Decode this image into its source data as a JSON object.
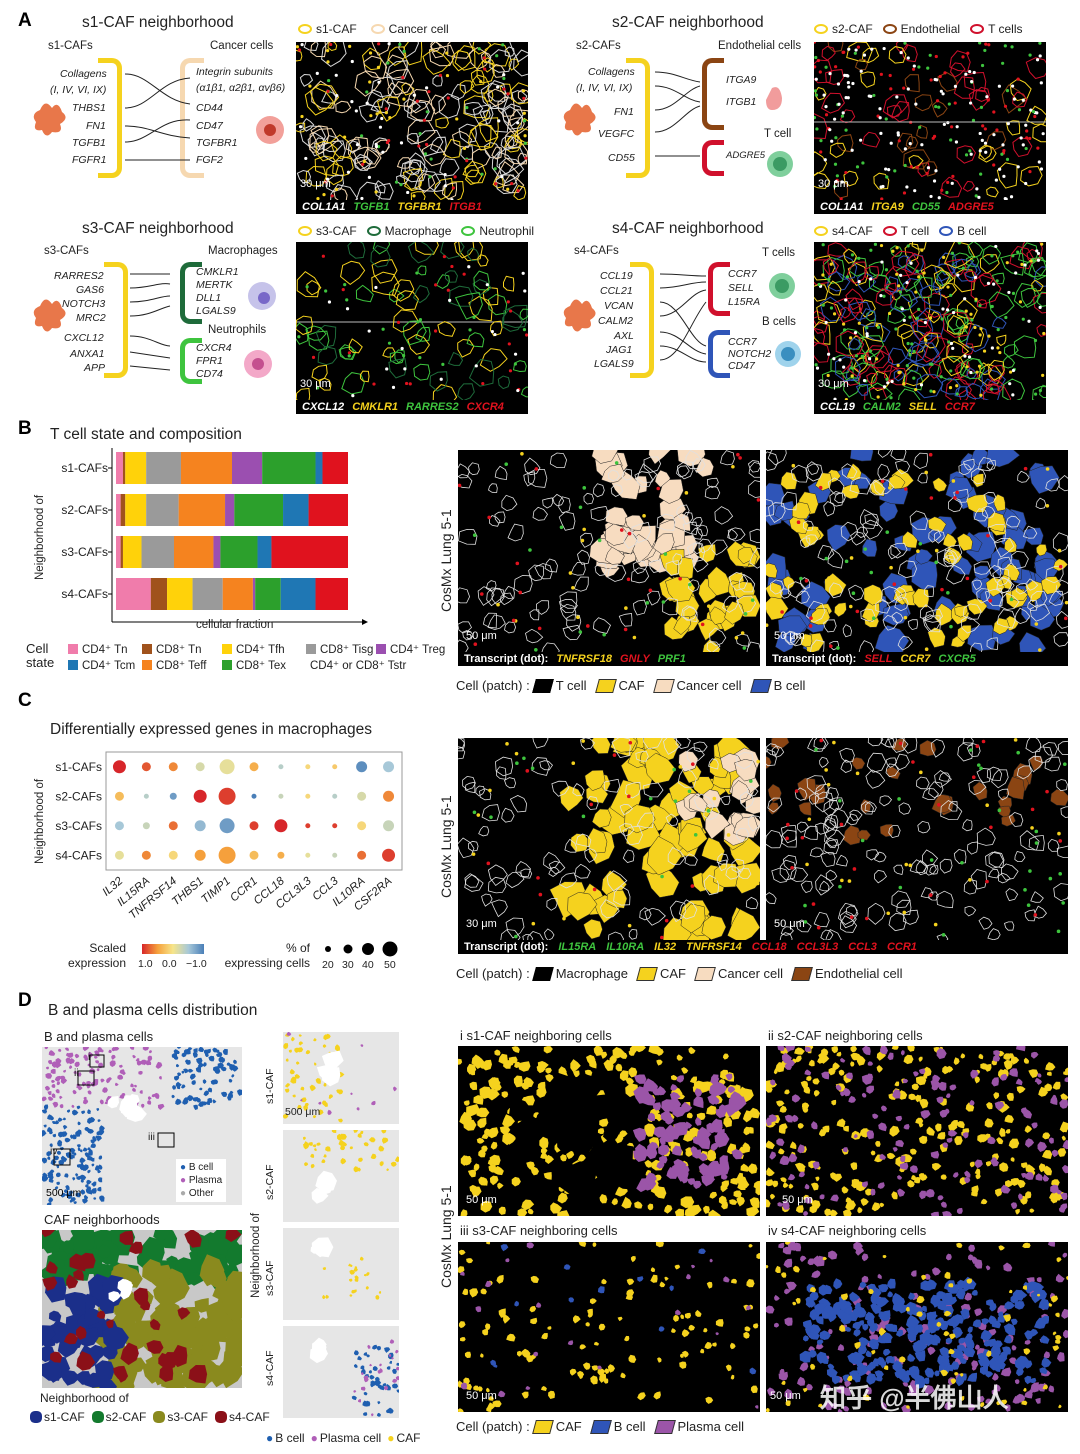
{
  "panels": {
    "a": "A",
    "b": "B",
    "c": "C",
    "d": "D"
  },
  "A": {
    "s1": {
      "title": "s1-CAF neighborhood",
      "left_head": "s1-CAFs",
      "right_head": "Cancer cells",
      "left_genes": [
        "Collagens",
        "(I, IV, VI, IX)",
        "THBS1",
        "FN1",
        "TGFB1",
        "FGFR1"
      ],
      "right_genes": [
        "Integrin subunits",
        "(α1β1, α2β1, αvβ6)",
        "CD44",
        "CD47",
        "TGFBR1",
        "FGF2"
      ],
      "legend": [
        "s1-CAF",
        "Cancer cell"
      ],
      "scale": "30 μm",
      "caption": [
        "COL1A1",
        "TGFB1",
        "TGFBR1",
        "ITGB1"
      ]
    },
    "s2": {
      "title": "s2-CAF neighborhood",
      "left_head": "s2-CAFs",
      "right_head": "Endothelial cells",
      "right_head2": "T cell",
      "left_genes": [
        "Collagens",
        "(I, IV, VI, IX)",
        "FN1",
        "VEGFC",
        "CD55"
      ],
      "right_genes": [
        "ITGA9",
        "ITGB1",
        "ADGRE5"
      ],
      "legend": [
        "s2-CAF",
        "Endothelial",
        "T cells"
      ],
      "scale": "30 μm",
      "caption": [
        "COL1A1",
        "ITGA9",
        "CD55",
        "ADGRE5"
      ]
    },
    "s3": {
      "title": "s3-CAF neighborhood",
      "left_head": "s3-CAFs",
      "right_head": "Macrophages",
      "right_head2": "Neutrophils",
      "left_genes": [
        "RARRES2",
        "GAS6",
        "NOTCH3",
        "MRC2",
        "CXCL12",
        "ANXA1",
        "APP"
      ],
      "right_genes": [
        "CMKLR1",
        "MERTK",
        "DLL1",
        "LGALS9",
        "CXCR4",
        "FPR1",
        "CD74"
      ],
      "legend": [
        "s3-CAF",
        "Macrophage",
        "Neutrophil"
      ],
      "scale": "30 μm",
      "caption": [
        "CXCL12",
        "CMKLR1",
        "RARRES2",
        "CXCR4"
      ]
    },
    "s4": {
      "title": "s4-CAF neighborhood",
      "left_head": "s4-CAFs",
      "right_head": "T cells",
      "right_head2": "B cells",
      "left_genes": [
        "CCL19",
        "CCL21",
        "VCAN",
        "CALM2",
        "AXL",
        "JAG1",
        "LGALS9"
      ],
      "right_genes": [
        "CCR7",
        "SELL",
        "L15RA",
        "CCR7",
        "NOTCH2",
        "CD47"
      ],
      "legend": [
        "s4-CAF",
        "T cell",
        "B cell"
      ],
      "scale": "30 μm",
      "caption": [
        "CCL19",
        "CALM2",
        "SELL",
        "CCR7"
      ]
    }
  },
  "B": {
    "title": "T cell state and composition",
    "ylabel": "Neighborhood of",
    "xlabel": "cellular fraction",
    "cell_state_label": [
      "Cell",
      "state"
    ],
    "legend": [
      {
        "name": "CD4⁺ Tn",
        "color": "#f07cab"
      },
      {
        "name": "CD8⁺ Tn",
        "color": "#a0521c"
      },
      {
        "name": "CD4⁺ Tfh",
        "color": "#ffd20a"
      },
      {
        "name": "CD8⁺ Tisg",
        "color": "#9a9a9a"
      },
      {
        "name": "CD4⁺ Treg",
        "color": "#9b4fb0"
      },
      {
        "name": "CD4⁺ Tcm",
        "color": "#1f77b4"
      },
      {
        "name": "CD8⁺ Teff",
        "color": "#f5831f"
      },
      {
        "name": "CD8⁺ Tex",
        "color": "#2ca02c"
      },
      {
        "name": "CD4⁺ or CD8⁺ Tstr",
        "color": "#e0121e"
      }
    ],
    "side_label": "CosMx Lung 5-1",
    "img1_caption": [
      "Transcript (dot):",
      "TNFRSF18",
      "GNLY",
      "PRF1"
    ],
    "img2_caption": [
      "Transcript (dot):",
      "SELL",
      "CCR7",
      "CXCR5"
    ],
    "scale": "50 μm",
    "patch_label": "Cell (patch) :",
    "patch_legend": [
      "T cell",
      "CAF",
      "Cancer cell",
      "B cell"
    ]
  },
  "chart_data": [
    {
      "type": "bar",
      "orientation": "horizontal-stacked",
      "title": "T cell state and composition",
      "xlabel": "cellular fraction",
      "ylabel": "Neighborhood of",
      "categories": [
        "s1-CAFs",
        "s2-CAFs",
        "s3-CAFs",
        "s4-CAFs"
      ],
      "xlim": [
        0,
        1
      ],
      "series": [
        {
          "name": "CD4⁺ Tn",
          "values": [
            0.03,
            0.02,
            0.02,
            0.15
          ]
        },
        {
          "name": "CD8⁺ Tn",
          "values": [
            0.01,
            0.02,
            0.01,
            0.07
          ]
        },
        {
          "name": "CD4⁺ Tfh",
          "values": [
            0.09,
            0.09,
            0.08,
            0.11
          ]
        },
        {
          "name": "CD8⁺ Tisg",
          "values": [
            0.15,
            0.14,
            0.14,
            0.13
          ]
        },
        {
          "name": "CD8⁺ Teff",
          "values": [
            0.22,
            0.2,
            0.17,
            0.13
          ]
        },
        {
          "name": "CD4⁺ Treg",
          "values": [
            0.13,
            0.04,
            0.03,
            0.01
          ]
        },
        {
          "name": "CD8⁺ Tex",
          "values": [
            0.23,
            0.21,
            0.16,
            0.11
          ]
        },
        {
          "name": "CD4⁺ Tcm",
          "values": [
            0.03,
            0.11,
            0.06,
            0.15
          ]
        },
        {
          "name": "CD4⁺ or CD8⁺ Tstr",
          "values": [
            0.11,
            0.17,
            0.33,
            0.14
          ]
        }
      ]
    },
    {
      "type": "scatter",
      "subtype": "dot-plot",
      "title": "Differentially expressed genes in macrophages",
      "ylabel": "Neighborhood of",
      "genes": [
        "IL32",
        "IL15RA",
        "TNFRSF14",
        "THBS1",
        "TIMP1",
        "CCR1",
        "CCL18",
        "CCL3L3",
        "CCL3",
        "IL10RA",
        "CSF2RA"
      ],
      "rows": [
        "s1-CAFs",
        "s2-CAFs",
        "s3-CAFs",
        "s4-CAFs"
      ],
      "expression_range": [
        -1.0,
        1.0
      ],
      "pct_range": [
        20,
        50
      ],
      "scaled_expression": [
        [
          1.0,
          0.8,
          0.6,
          -0.2,
          -0.1,
          0.4,
          -0.4,
          0.1,
          0.2,
          -0.9,
          -0.5
        ],
        [
          0.3,
          -0.4,
          -0.8,
          1.0,
          0.9,
          -1.0,
          -0.3,
          0.1,
          -0.4,
          -0.2,
          0.6
        ],
        [
          -0.5,
          -0.3,
          0.7,
          -0.6,
          -0.8,
          0.9,
          1.0,
          0.9,
          0.9,
          0.1,
          -0.3
        ],
        [
          -0.1,
          0.6,
          0.1,
          0.5,
          0.5,
          0.3,
          0.4,
          -0.1,
          -0.3,
          0.7,
          0.9
        ]
      ],
      "pct_expressing": [
        [
          40,
          30,
          30,
          30,
          45,
          30,
          20,
          20,
          20,
          35,
          35
        ],
        [
          30,
          20,
          25,
          40,
          50,
          20,
          20,
          20,
          20,
          30,
          35
        ],
        [
          30,
          25,
          30,
          35,
          45,
          30,
          40,
          20,
          20,
          30,
          35
        ],
        [
          30,
          30,
          30,
          35,
          50,
          30,
          25,
          20,
          20,
          30,
          40
        ]
      ]
    }
  ],
  "C": {
    "title": "Differentially expressed genes in macrophages",
    "ylabel": "Neighborhood of",
    "scaled_label": [
      "Scaled",
      "expression"
    ],
    "scale_ticks": [
      "1.0",
      "0.0",
      "−1.0"
    ],
    "pct_label": [
      "% of",
      "expressing cells"
    ],
    "pct_ticks": [
      "20",
      "30",
      "40",
      "50"
    ],
    "side_label": "CosMx Lung 5-1",
    "caption": [
      "Transcript (dot):",
      "IL15RA",
      "IL10RA",
      "IL32",
      "TNFRSF14",
      "CCL18",
      "CCL3L3",
      "CCL3",
      "CCR1"
    ],
    "scale": "30 μm",
    "scale2": "50 μm",
    "patch_label": "Cell (patch) :",
    "patch_legend": [
      "Macrophage",
      "CAF",
      "Cancer cell",
      "Endothelial cell"
    ]
  },
  "D": {
    "title": "B and plasma cells distribution",
    "sub1": "B and plasma cells",
    "roman": [
      "i",
      "ii",
      "iii",
      "iv"
    ],
    "map_legend": [
      "B cell",
      "Plasma",
      "Other"
    ],
    "scale1": "500 μm",
    "sub2": "CAF neighborhoods",
    "nb_label": "Neighborhood of",
    "nb_legend": [
      "s1-CAF",
      "s2-CAF",
      "s3-CAF",
      "s4-CAF"
    ],
    "strip_ylabel": "Neighborhood of",
    "strip_labels": [
      "s1-CAF",
      "s2-CAF",
      "s3-CAF",
      "s4-CAF"
    ],
    "strip_scale": "500 μm",
    "strip_legend": [
      "B cell",
      "Plasma cell",
      "CAF"
    ],
    "side_label": "CosMx Lung 5-1",
    "quad_titles": [
      "i  s1-CAF neighboring cells",
      "ii  s2-CAF neighboring cells",
      "iii  s3-CAF neighboring cells",
      "iv  s4-CAF neighboring cells"
    ],
    "quad_scale": "50 μm",
    "patch_label": "Cell (patch) :",
    "patch_legend": [
      "CAF",
      "B cell",
      "Plasma cell"
    ],
    "watermark": "知乎 @半佛山人"
  }
}
